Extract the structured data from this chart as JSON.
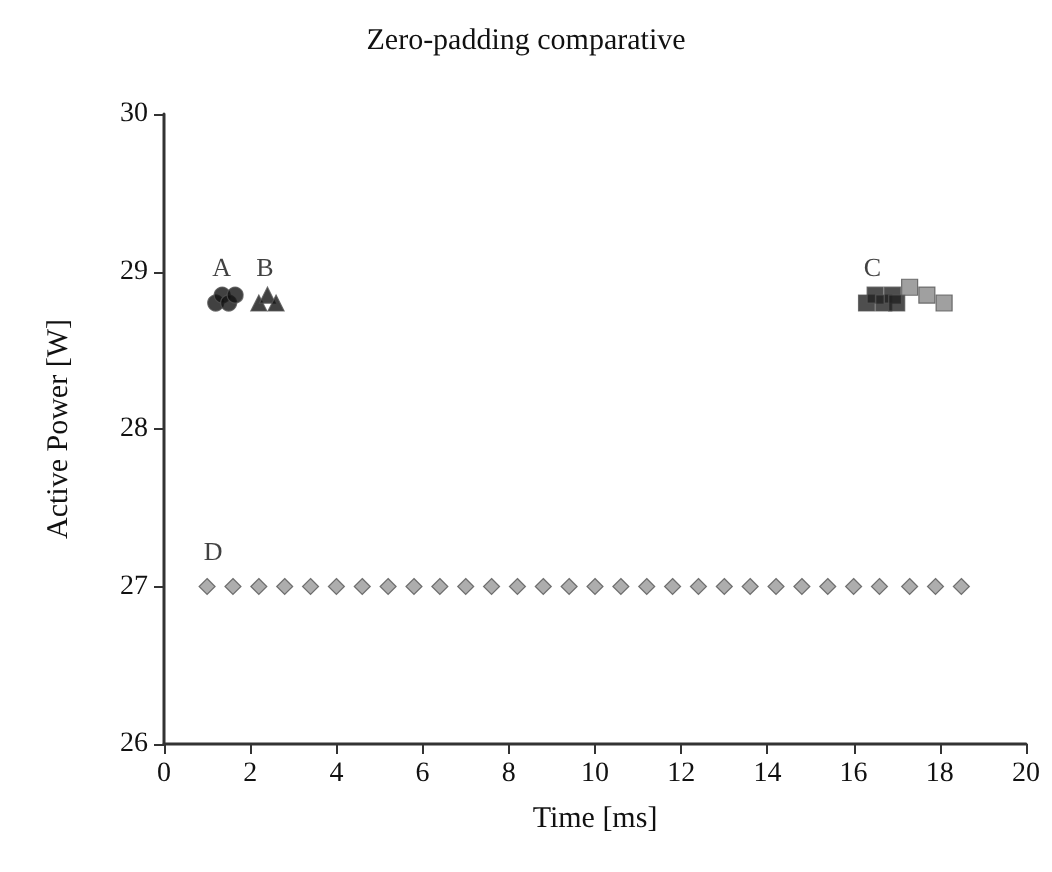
{
  "chart_data": {
    "type": "scatter",
    "title": "Zero-padding comparative",
    "xlabel": "Time [ms]",
    "ylabel": "Active Power [W]",
    "xlim": [
      0,
      20
    ],
    "xticks": [
      0,
      2,
      4,
      6,
      8,
      10,
      12,
      14,
      16,
      18,
      20
    ],
    "ylim": [
      26,
      30
    ],
    "yticks": [
      26,
      27,
      28,
      29,
      30
    ],
    "grid": false,
    "series": [
      {
        "name": "A",
        "color": "#111111",
        "marker": "circle",
        "x": [
          1.2,
          1.35,
          1.5,
          1.65
        ],
        "values": [
          28.8,
          28.85,
          28.8,
          28.85
        ]
      },
      {
        "name": "B",
        "color": "#111111",
        "marker": "triangle",
        "x": [
          2.2,
          2.4,
          2.6
        ],
        "values": [
          28.8,
          28.85,
          28.8
        ]
      },
      {
        "name": "C",
        "color": "#222222",
        "marker": "square",
        "x": [
          16.3,
          16.5,
          16.7,
          16.9,
          17.0
        ],
        "values": [
          28.8,
          28.85,
          28.8,
          28.85,
          28.8
        ]
      },
      {
        "color": "#888888",
        "marker": "square",
        "x": [
          17.3,
          17.7,
          18.1
        ],
        "values": [
          28.9,
          28.85,
          28.8
        ]
      },
      {
        "name": "D",
        "color": "#999999",
        "marker": "diamond",
        "x": [
          1.0,
          1.6,
          2.2,
          2.8,
          3.4,
          4.0,
          4.6,
          5.2,
          5.8,
          6.4,
          7.0,
          7.6,
          8.2,
          8.8,
          9.4,
          10.0,
          10.6,
          11.2,
          11.8,
          12.4,
          13.0,
          13.6,
          14.2,
          14.8,
          15.4,
          16.0,
          16.6,
          17.3,
          17.9,
          18.5
        ],
        "values": [
          27,
          27,
          27,
          27,
          27,
          27,
          27,
          27,
          27,
          27,
          27,
          27,
          27,
          27,
          27,
          27,
          27,
          27,
          27,
          27,
          27,
          27,
          27,
          27,
          27,
          27,
          27,
          27,
          27,
          27
        ]
      }
    ]
  }
}
